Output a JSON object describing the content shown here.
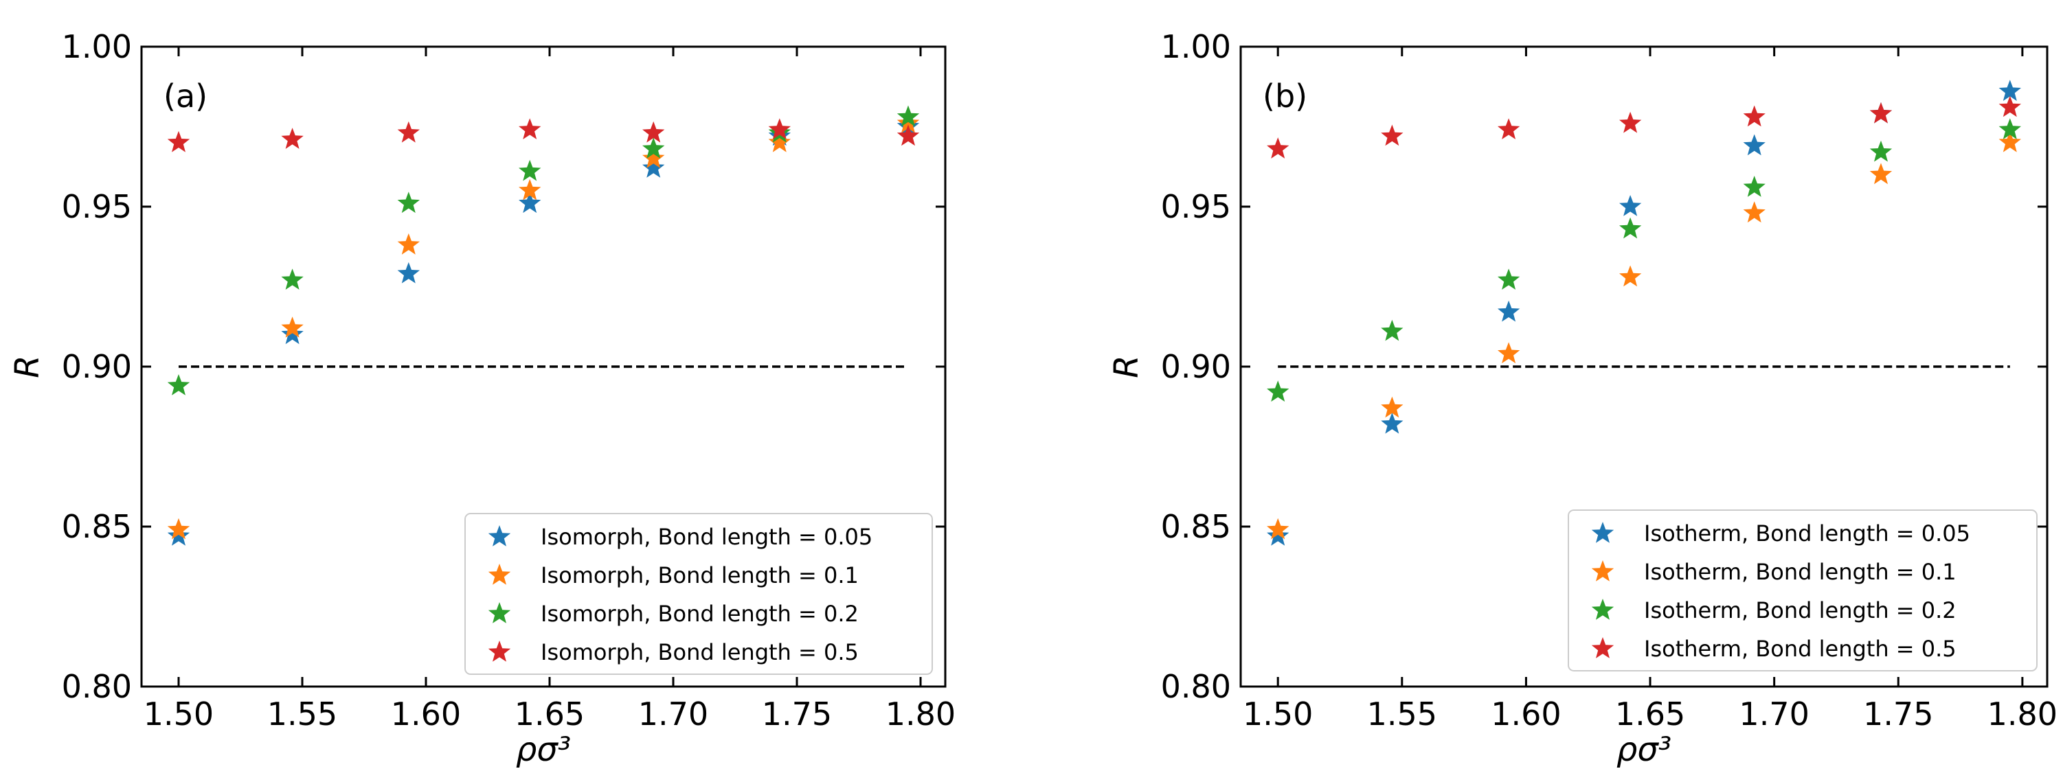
{
  "figure": {
    "description_id": "two-panel-scatter"
  },
  "chart_data": [
    {
      "type": "scatter",
      "panel_label": "(a)",
      "xlabel": "ρσ³",
      "ylabel": "R",
      "xlim": [
        1.485,
        1.81
      ],
      "ylim": [
        0.8,
        1.0
      ],
      "xticks": [
        1.5,
        1.55,
        1.6,
        1.65,
        1.7,
        1.75,
        1.8
      ],
      "xtick_labels": [
        "1.50",
        "1.55",
        "1.60",
        "1.65",
        "1.70",
        "1.75",
        "1.80"
      ],
      "yticks": [
        0.8,
        0.85,
        0.9,
        0.95,
        1.0
      ],
      "ytick_labels": [
        "0.80",
        "0.85",
        "0.90",
        "0.95",
        "1.00"
      ],
      "reference_line": {
        "y": 0.9,
        "x_start": 1.5,
        "x_end": 1.795,
        "style": "dashed"
      },
      "legend_position": "lower-right",
      "series": [
        {
          "name": "Isomorph, Bond length = 0.05",
          "color": "#1f77b4",
          "x": [
            1.5,
            1.546,
            1.593,
            1.642,
            1.692,
            1.743,
            1.795
          ],
          "y": [
            0.847,
            0.91,
            0.929,
            0.951,
            0.962,
            0.972,
            0.975
          ]
        },
        {
          "name": "Isomorph, Bond length = 0.1",
          "color": "#ff7f0e",
          "x": [
            1.5,
            1.546,
            1.593,
            1.642,
            1.692,
            1.743,
            1.795
          ],
          "y": [
            0.849,
            0.912,
            0.938,
            0.955,
            0.965,
            0.97,
            0.976
          ]
        },
        {
          "name": "Isomorph, Bond length = 0.2",
          "color": "#2ca02c",
          "x": [
            1.5,
            1.546,
            1.593,
            1.642,
            1.692,
            1.743,
            1.795
          ],
          "y": [
            0.894,
            0.927,
            0.951,
            0.961,
            0.968,
            0.973,
            0.978
          ]
        },
        {
          "name": "Isomorph, Bond length = 0.5",
          "color": "#d62728",
          "x": [
            1.5,
            1.546,
            1.593,
            1.642,
            1.692,
            1.743,
            1.795
          ],
          "y": [
            0.97,
            0.971,
            0.973,
            0.974,
            0.973,
            0.974,
            0.972
          ]
        }
      ]
    },
    {
      "type": "scatter",
      "panel_label": "(b)",
      "xlabel": "ρσ³",
      "ylabel": "R",
      "xlim": [
        1.485,
        1.81
      ],
      "ylim": [
        0.8,
        1.0
      ],
      "xticks": [
        1.5,
        1.55,
        1.6,
        1.65,
        1.7,
        1.75,
        1.8
      ],
      "xtick_labels": [
        "1.50",
        "1.55",
        "1.60",
        "1.65",
        "1.70",
        "1.75",
        "1.80"
      ],
      "yticks": [
        0.8,
        0.85,
        0.9,
        0.95,
        1.0
      ],
      "ytick_labels": [
        "0.80",
        "0.85",
        "0.90",
        "0.95",
        "1.00"
      ],
      "reference_line": {
        "y": 0.9,
        "x_start": 1.5,
        "x_end": 1.795,
        "style": "dashed"
      },
      "legend_position": "lower-right",
      "series": [
        {
          "name": "Isotherm, Bond length = 0.05",
          "color": "#1f77b4",
          "x": [
            1.5,
            1.546,
            1.593,
            1.642,
            1.692,
            1.743,
            1.795
          ],
          "y": [
            0.847,
            0.882,
            0.917,
            0.95,
            0.969,
            0.979,
            0.986
          ]
        },
        {
          "name": "Isotherm, Bond length = 0.1",
          "color": "#ff7f0e",
          "x": [
            1.5,
            1.546,
            1.593,
            1.642,
            1.692,
            1.743,
            1.795
          ],
          "y": [
            0.849,
            0.887,
            0.904,
            0.928,
            0.948,
            0.96,
            0.97
          ]
        },
        {
          "name": "Isotherm, Bond length = 0.2",
          "color": "#2ca02c",
          "x": [
            1.5,
            1.546,
            1.593,
            1.642,
            1.692,
            1.743,
            1.795
          ],
          "y": [
            0.892,
            0.911,
            0.927,
            0.943,
            0.956,
            0.967,
            0.974
          ]
        },
        {
          "name": "Isotherm, Bond length = 0.5",
          "color": "#d62728",
          "x": [
            1.5,
            1.546,
            1.593,
            1.642,
            1.692,
            1.743,
            1.795
          ],
          "y": [
            0.968,
            0.972,
            0.974,
            0.976,
            0.978,
            0.979,
            0.981
          ]
        }
      ]
    }
  ]
}
